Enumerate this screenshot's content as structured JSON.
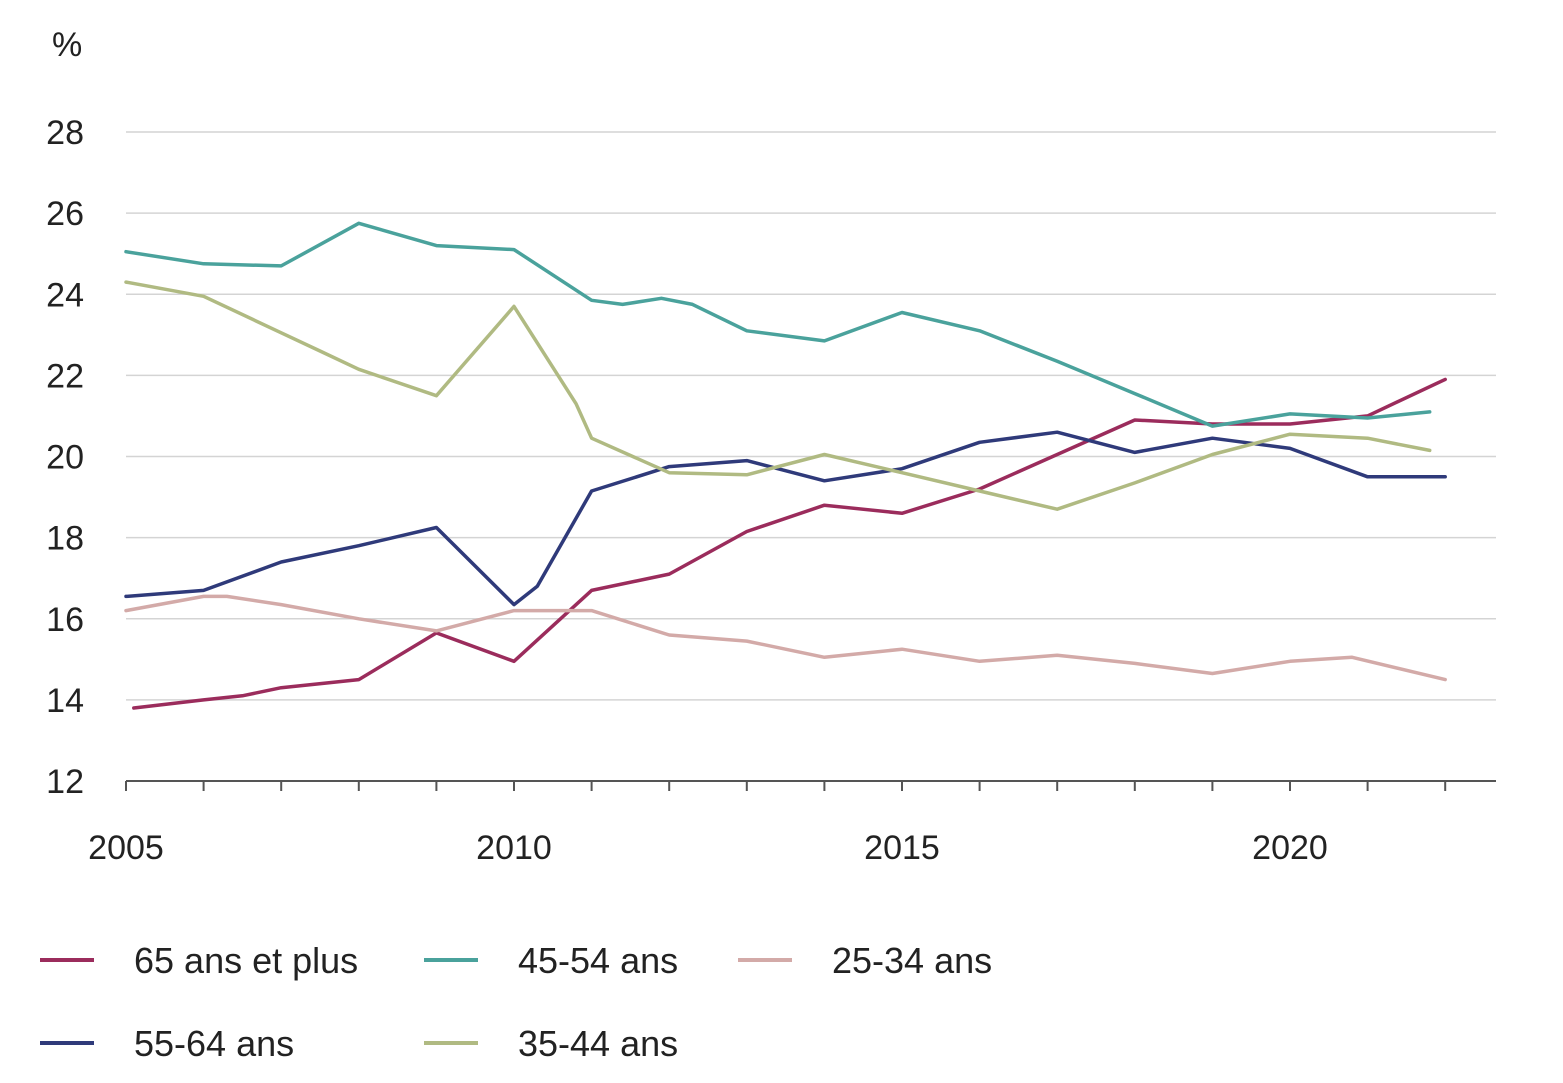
{
  "chart_data": {
    "type": "line",
    "ylabel": "%",
    "ylim": [
      12,
      28
    ],
    "yticks": [
      "12",
      "14",
      "16",
      "18",
      "20",
      "22",
      "24",
      "26",
      "28"
    ],
    "xlim": [
      2005,
      2022.5
    ],
    "xticks": [
      "2005",
      "2010",
      "2015",
      "2020"
    ],
    "grid": true,
    "legend_position": "bottom",
    "series": [
      {
        "name": "65 ans et plus",
        "color": "#9b2c5c",
        "points": [
          [
            2005.1,
            13.8
          ],
          [
            2006,
            14.0
          ],
          [
            2006.5,
            14.1
          ],
          [
            2007,
            14.3
          ],
          [
            2008,
            14.5
          ],
          [
            2009,
            15.65
          ],
          [
            2010,
            14.95
          ],
          [
            2011,
            16.7
          ],
          [
            2012,
            17.1
          ],
          [
            2013,
            18.15
          ],
          [
            2014,
            18.8
          ],
          [
            2015,
            18.6
          ],
          [
            2016,
            19.2
          ],
          [
            2017,
            20.05
          ],
          [
            2018,
            20.9
          ],
          [
            2019,
            20.8
          ],
          [
            2020,
            20.8
          ],
          [
            2021,
            21.0
          ],
          [
            2022,
            21.9
          ]
        ]
      },
      {
        "name": "45-54 ans",
        "color": "#4aa29c",
        "points": [
          [
            2005,
            25.05
          ],
          [
            2006,
            24.75
          ],
          [
            2007,
            24.7
          ],
          [
            2008,
            25.75
          ],
          [
            2009,
            25.2
          ],
          [
            2010,
            25.1
          ],
          [
            2011,
            23.85
          ],
          [
            2011.4,
            23.75
          ],
          [
            2011.9,
            23.9
          ],
          [
            2012.3,
            23.75
          ],
          [
            2013,
            23.1
          ],
          [
            2014,
            22.85
          ],
          [
            2015,
            23.55
          ],
          [
            2016,
            23.1
          ],
          [
            2017,
            22.35
          ],
          [
            2018,
            21.55
          ],
          [
            2019,
            20.75
          ],
          [
            2020,
            21.05
          ],
          [
            2021,
            20.95
          ],
          [
            2021.8,
            21.1
          ]
        ]
      },
      {
        "name": "25-34 ans",
        "color": "#d3aaa8",
        "points": [
          [
            2005,
            16.2
          ],
          [
            2006,
            16.55
          ],
          [
            2006.3,
            16.55
          ],
          [
            2007,
            16.35
          ],
          [
            2008,
            16.0
          ],
          [
            2009,
            15.7
          ],
          [
            2010,
            16.2
          ],
          [
            2011,
            16.2
          ],
          [
            2012,
            15.6
          ],
          [
            2013,
            15.45
          ],
          [
            2014,
            15.05
          ],
          [
            2015,
            15.25
          ],
          [
            2016,
            14.95
          ],
          [
            2017,
            15.1
          ],
          [
            2018,
            14.9
          ],
          [
            2019,
            14.65
          ],
          [
            2020,
            14.95
          ],
          [
            2020.8,
            15.05
          ],
          [
            2022,
            14.5
          ]
        ]
      },
      {
        "name": "55-64 ans",
        "color": "#2f3a7a",
        "points": [
          [
            2005,
            16.55
          ],
          [
            2006,
            16.7
          ],
          [
            2007,
            17.4
          ],
          [
            2008,
            17.8
          ],
          [
            2009,
            18.25
          ],
          [
            2010,
            16.35
          ],
          [
            2010.3,
            16.8
          ],
          [
            2011,
            19.15
          ],
          [
            2012,
            19.75
          ],
          [
            2013,
            19.9
          ],
          [
            2014,
            19.4
          ],
          [
            2015,
            19.7
          ],
          [
            2016,
            20.35
          ],
          [
            2017,
            20.6
          ],
          [
            2018,
            20.1
          ],
          [
            2019,
            20.45
          ],
          [
            2020,
            20.2
          ],
          [
            2021,
            19.5
          ],
          [
            2022,
            19.5
          ]
        ]
      },
      {
        "name": "35-44 ans",
        "color": "#b0ba82",
        "points": [
          [
            2005,
            24.3
          ],
          [
            2006,
            23.95
          ],
          [
            2007,
            23.05
          ],
          [
            2007.5,
            22.6
          ],
          [
            2008,
            22.15
          ],
          [
            2009,
            21.5
          ],
          [
            2010,
            23.7
          ],
          [
            2010.8,
            21.3
          ],
          [
            2011,
            20.45
          ],
          [
            2012,
            19.6
          ],
          [
            2013,
            19.55
          ],
          [
            2014,
            20.05
          ],
          [
            2015,
            19.6
          ],
          [
            2016,
            19.15
          ],
          [
            2017,
            18.7
          ],
          [
            2018,
            19.35
          ],
          [
            2019,
            20.05
          ],
          [
            2020,
            20.55
          ],
          [
            2021,
            20.45
          ],
          [
            2021.8,
            20.15
          ]
        ]
      }
    ]
  }
}
